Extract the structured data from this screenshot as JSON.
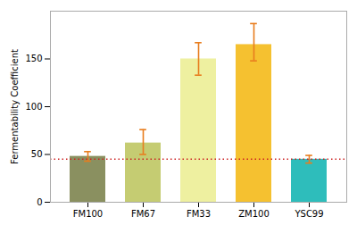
{
  "chart_data": {
    "type": "bar",
    "categories": [
      "FM100",
      "FM67",
      "FM33",
      "ZM100",
      "YSC99"
    ],
    "values": [
      48,
      62,
      150,
      165,
      45
    ],
    "colors": [
      "#8a9060",
      "#c5cc72",
      "#eef0a0",
      "#f5c130",
      "#2ebdbb"
    ],
    "errors": {
      "upper": [
        5,
        14,
        17,
        22,
        4
      ],
      "lower": [
        5,
        12,
        17,
        17,
        4
      ],
      "color": "#e87d1e"
    },
    "reference_line": {
      "value": 45,
      "color": "#cc2222",
      "line_style": "dotted"
    },
    "ylabel": "Fermentability Coefficient",
    "ylim": [
      0,
      200
    ],
    "yticks": [
      0,
      50,
      100,
      150
    ],
    "grid": false
  }
}
